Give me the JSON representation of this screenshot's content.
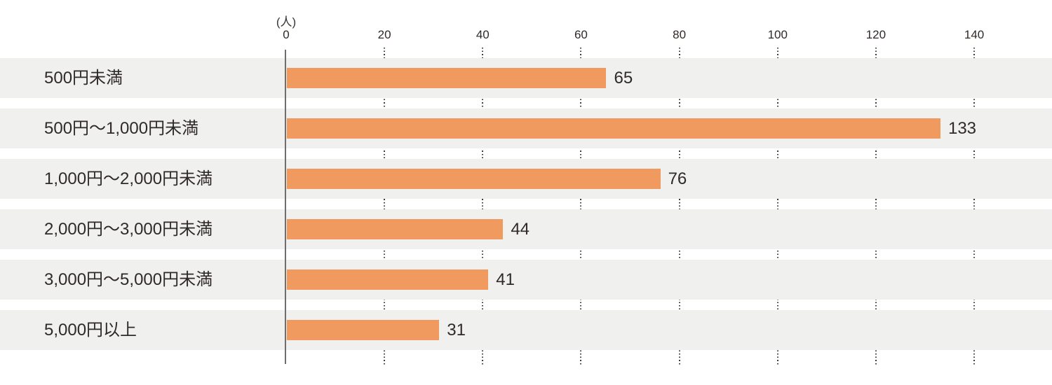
{
  "chart_data": {
    "type": "bar",
    "orientation": "horizontal",
    "unit_label": "(人)",
    "categories": [
      "500円未満",
      "500円～1,000円未満",
      "1,000円～2,000円未満",
      "2,000円～3,000円未満",
      "3,000円～5,000円未満",
      "5,000円以上"
    ],
    "values": [
      65,
      133,
      76,
      44,
      41,
      31
    ],
    "x_ticks": [
      0,
      20,
      40,
      60,
      80,
      100,
      120,
      140
    ],
    "xlim": [
      0,
      140
    ],
    "grid": "dotted-vertical-between-rows",
    "legend": "none",
    "colors": {
      "bar": "#F09A60",
      "row_band": "#F0F0EF",
      "axis_line": "#6E6E6E",
      "grid_dots": "#3C3C3C",
      "text": "#2F2A28"
    }
  }
}
